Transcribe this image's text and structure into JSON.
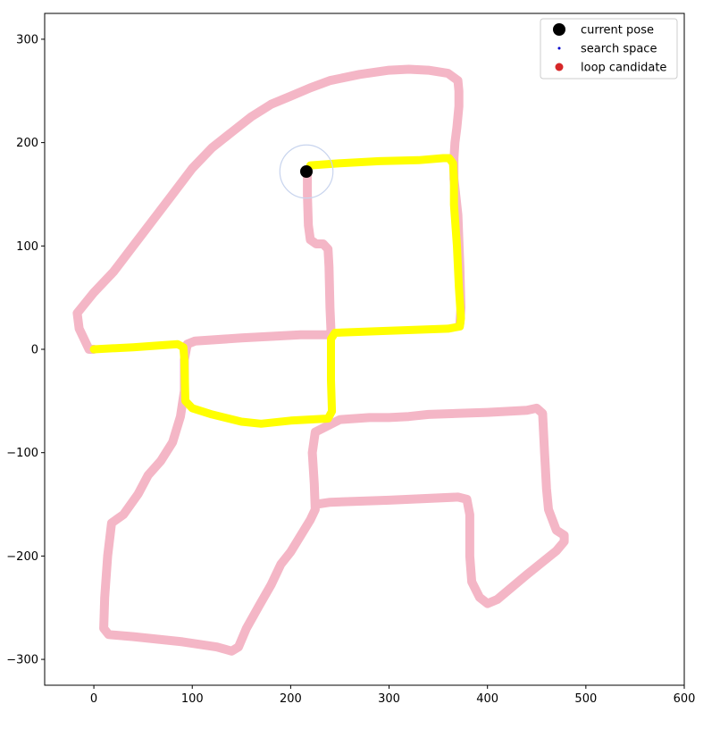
{
  "chart_data": {
    "type": "scatter",
    "title": "",
    "xlabel": "",
    "ylabel": "",
    "xlim": [
      -50,
      600
    ],
    "ylim": [
      -325,
      325
    ],
    "x_ticks": [
      0,
      100,
      200,
      300,
      400,
      500,
      600
    ],
    "y_ticks": [
      -300,
      -200,
      -100,
      0,
      100,
      200,
      300
    ],
    "x_tick_labels": [
      "0",
      "100",
      "200",
      "300",
      "400",
      "500",
      "600"
    ],
    "y_tick_labels": [
      "−300",
      "−200",
      "−100",
      "0",
      "100",
      "200",
      "300"
    ],
    "grid": false,
    "legend": {
      "placement": "top-right",
      "entries": [
        {
          "label": "current pose",
          "marker": "large-dot",
          "color": "#000000"
        },
        {
          "label": "search space",
          "marker": "small-dot",
          "color": "#0000cc"
        },
        {
          "label": "loop candidate",
          "marker": "dot",
          "color": "#d62728"
        }
      ]
    },
    "colors": {
      "trajectory": "#f4b6c6",
      "highlight": "#ffff00",
      "current_pose": "#000000",
      "search_circle": "#c8d4ee"
    },
    "series": [
      {
        "role": "trajectory",
        "points": [
          [
            217,
            172
          ],
          [
            217,
            150
          ],
          [
            218,
            120
          ],
          [
            220,
            106
          ],
          [
            226,
            102
          ],
          [
            233,
            102
          ],
          [
            238,
            97
          ],
          [
            239,
            80
          ],
          [
            240,
            40
          ],
          [
            241,
            18
          ],
          [
            239,
            14
          ],
          [
            210,
            14
          ],
          [
            150,
            11
          ],
          [
            103,
            8
          ],
          [
            95,
            5
          ],
          [
            92,
            -10
          ],
          [
            92,
            -40
          ],
          [
            88,
            -65
          ],
          [
            80,
            -90
          ],
          [
            68,
            -108
          ],
          [
            55,
            -122
          ],
          [
            45,
            -140
          ],
          [
            30,
            -160
          ],
          [
            18,
            -168
          ],
          [
            14,
            -200
          ],
          [
            11,
            -240
          ],
          [
            10,
            -270
          ],
          [
            15,
            -276
          ],
          [
            40,
            -278
          ],
          [
            90,
            -283
          ],
          [
            125,
            -288
          ],
          [
            140,
            -292
          ],
          [
            147,
            -288
          ],
          [
            155,
            -270
          ],
          [
            168,
            -248
          ],
          [
            180,
            -228
          ],
          [
            190,
            -208
          ],
          [
            200,
            -196
          ],
          [
            220,
            -165
          ],
          [
            225,
            -155
          ],
          [
            224,
            -130
          ],
          [
            222,
            -100
          ],
          [
            225,
            -80
          ],
          [
            250,
            -68
          ],
          [
            280,
            -66
          ],
          [
            300,
            -66
          ],
          [
            320,
            -65
          ],
          [
            340,
            -63
          ],
          [
            400,
            -61
          ],
          [
            440,
            -59
          ],
          [
            450,
            -57
          ],
          [
            456,
            -62
          ],
          [
            458,
            -100
          ],
          [
            460,
            -135
          ],
          [
            462,
            -155
          ],
          [
            470,
            -175
          ],
          [
            478,
            -180
          ],
          [
            478,
            -186
          ],
          [
            470,
            -195
          ],
          [
            440,
            -218
          ],
          [
            410,
            -242
          ],
          [
            400,
            -246
          ],
          [
            392,
            -240
          ],
          [
            384,
            -225
          ],
          [
            382,
            -200
          ],
          [
            382,
            -160
          ],
          [
            379,
            -145
          ],
          [
            370,
            -143
          ],
          [
            300,
            -146
          ],
          [
            240,
            -148
          ],
          [
            226,
            -150
          ]
        ]
      },
      {
        "role": "trajectory",
        "points": [
          [
            0,
            0
          ],
          [
            -5,
            0
          ],
          [
            -10,
            10
          ],
          [
            -15,
            20
          ],
          [
            -17,
            35
          ],
          [
            0,
            55
          ],
          [
            20,
            75
          ],
          [
            40,
            100
          ],
          [
            60,
            125
          ],
          [
            80,
            150
          ],
          [
            100,
            175
          ],
          [
            120,
            195
          ],
          [
            140,
            210
          ],
          [
            160,
            225
          ],
          [
            180,
            237
          ],
          [
            200,
            245
          ],
          [
            220,
            253
          ],
          [
            240,
            260
          ],
          [
            270,
            266
          ],
          [
            300,
            270
          ],
          [
            320,
            271
          ],
          [
            340,
            270
          ],
          [
            360,
            267
          ],
          [
            370,
            260
          ],
          [
            371,
            250
          ],
          [
            371,
            235
          ],
          [
            369,
            215
          ],
          [
            367,
            200
          ],
          [
            366,
            185
          ],
          [
            366,
            165
          ],
          [
            370,
            130
          ],
          [
            372,
            80
          ],
          [
            373,
            40
          ],
          [
            372,
            25
          ]
        ]
      },
      {
        "role": "highlight",
        "points": [
          [
            220,
            178
          ],
          [
            250,
            180
          ],
          [
            290,
            182
          ],
          [
            330,
            183
          ],
          [
            355,
            185
          ],
          [
            361,
            185
          ],
          [
            365,
            180
          ],
          [
            366,
            165
          ],
          [
            366,
            140
          ],
          [
            369,
            100
          ],
          [
            371,
            60
          ],
          [
            373,
            30
          ],
          [
            372,
            22
          ],
          [
            360,
            20
          ],
          [
            300,
            18
          ],
          [
            245,
            16
          ],
          [
            241,
            10
          ],
          [
            241,
            -30
          ],
          [
            242,
            -60
          ],
          [
            238,
            -67
          ],
          [
            200,
            -69
          ],
          [
            170,
            -72
          ],
          [
            150,
            -70
          ],
          [
            120,
            -63
          ],
          [
            100,
            -57
          ],
          [
            93,
            -50
          ],
          [
            92,
            -10
          ],
          [
            91,
            2
          ],
          [
            85,
            5
          ],
          [
            40,
            2
          ],
          [
            0,
            0
          ]
        ]
      },
      {
        "role": "current_pose",
        "points": [
          [
            216,
            172
          ]
        ],
        "search_radius": 27
      }
    ]
  }
}
